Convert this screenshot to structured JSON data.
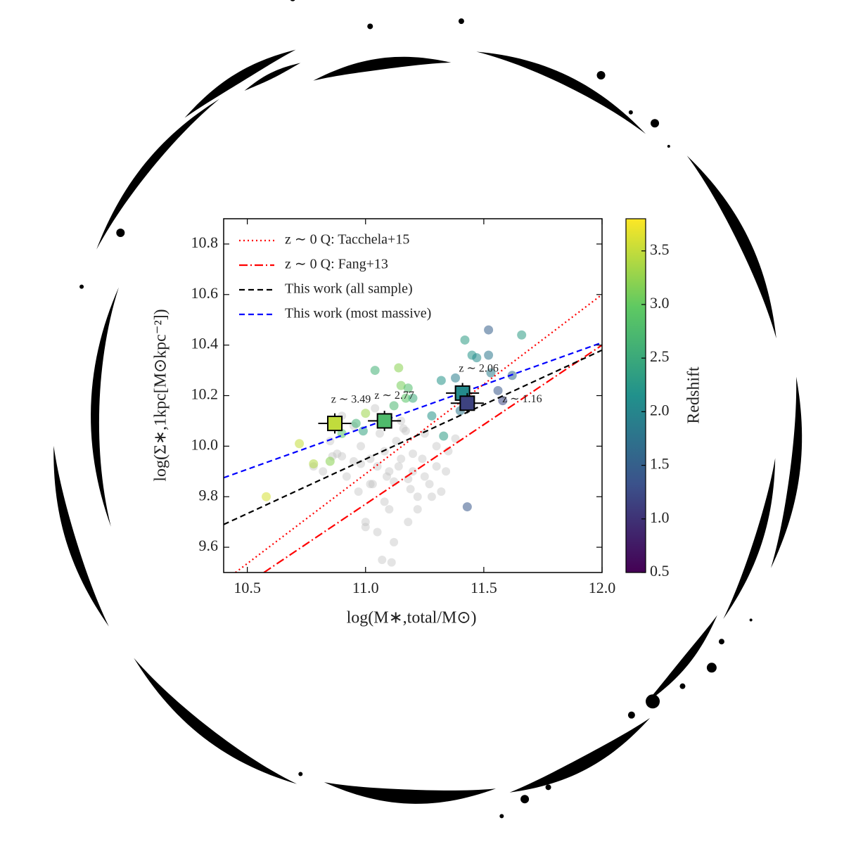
{
  "chart_data": {
    "type": "scatter",
    "xlabel": "log(M∗,total/M⊙)",
    "ylabel": "log(Σ∗,1kpc[M⊙kpc⁻²])",
    "xlim": [
      10.4,
      12.0
    ],
    "ylim": [
      9.5,
      10.9
    ],
    "xticks": [
      10.5,
      {
        "value": 11,
        "label": "11.0"
      },
      11.5,
      {
        "value": 12,
        "label": "12.0"
      }
    ],
    "yticks": [
      9.6,
      9.8,
      {
        "value": 10,
        "label": "10.0"
      },
      10.2,
      10.4,
      10.6,
      10.8
    ],
    "legend": "upper left",
    "series": [
      {
        "name": "z ∼ 0 Q: Tacchela+15",
        "color": "#ff0000",
        "dash": "dotted",
        "x": [
          10.45,
          12.0
        ],
        "values": [
          9.5,
          10.6
        ]
      },
      {
        "name": "z ∼ 0 Q: Fang+13",
        "color": "#ff0000",
        "dash": "dashdot",
        "x": [
          10.57,
          12.0
        ],
        "values": [
          9.5,
          10.4
        ]
      },
      {
        "name": "This work (all sample)",
        "color": "#000000",
        "dash": "dashed",
        "x": [
          10.4,
          12.0
        ],
        "values": [
          9.69,
          10.38
        ]
      },
      {
        "name": "This work (most massive)",
        "color": "#0000ff",
        "dash": "dashed",
        "x": [
          10.4,
          12.0
        ],
        "values": [
          9.875,
          10.41
        ]
      }
    ],
    "gray_points": {
      "color": "#bbbbbb",
      "x": [
        10.78,
        10.82,
        10.85,
        10.88,
        10.9,
        10.92,
        10.95,
        10.97,
        10.98,
        11.0,
        11.02,
        11.03,
        11.05,
        11.06,
        11.08,
        11.1,
        11.12,
        11.13,
        11.15,
        11.16,
        11.18,
        11.2,
        11.22,
        11.24,
        11.25,
        11.27,
        11.3,
        11.32,
        11.35,
        11.38,
        11.1,
        11.05,
        11.0,
        11.15,
        11.2,
        11.08,
        10.95,
        11.12,
        11.18,
        11.25,
        11.02,
        11.07,
        10.9,
        11.3,
        11.22,
        11.14,
        11.04,
        10.98,
        11.28,
        11.17,
        11.09,
        11.11,
        10.86,
        11.34,
        11.19
      ],
      "values": [
        9.92,
        9.9,
        10.02,
        9.97,
        9.96,
        9.88,
        9.94,
        9.82,
        10.0,
        9.7,
        9.95,
        9.85,
        9.92,
        10.05,
        9.98,
        9.9,
        9.86,
        10.02,
        9.95,
        10.07,
        9.87,
        9.9,
        9.8,
        9.95,
        10.05,
        9.85,
        9.92,
        9.82,
        9.98,
        10.03,
        9.75,
        9.66,
        9.68,
        10.1,
        9.97,
        9.78,
        10.08,
        9.62,
        9.7,
        9.88,
        9.85,
        9.55,
        10.12,
        10.0,
        9.75,
        9.92,
        10.15,
        9.93,
        9.8,
        10.06,
        9.88,
        9.54,
        9.96,
        9.9,
        9.83
      ]
    },
    "points": {
      "x": [
        11.66,
        11.52,
        11.42,
        11.45,
        11.47,
        11.52,
        11.53,
        11.62,
        11.56,
        11.58,
        11.32,
        11.14,
        11.04,
        11.15,
        11.18,
        11.12,
        11.17,
        11.2,
        11.0,
        10.99,
        10.96,
        10.9,
        10.85,
        10.78,
        10.72,
        10.58,
        11.43,
        11.33,
        11.4,
        11.28,
        11.38
      ],
      "values": [
        10.44,
        10.46,
        10.42,
        10.36,
        10.35,
        10.36,
        10.29,
        10.28,
        10.22,
        10.18,
        10.26,
        10.31,
        10.3,
        10.24,
        10.23,
        10.16,
        10.19,
        10.19,
        10.13,
        10.06,
        10.09,
        10.05,
        9.94,
        9.93,
        10.01,
        9.8,
        9.76,
        10.04,
        10.14,
        10.12,
        10.27
      ],
      "redshift": [
        2.3,
        1.5,
        2.3,
        2.2,
        2.1,
        1.8,
        1.9,
        1.6,
        1.4,
        1.2,
        2.2,
        3.2,
        2.6,
        3.1,
        2.8,
        2.7,
        2.9,
        2.5,
        3.3,
        2.4,
        2.6,
        2.9,
        3.2,
        3.4,
        3.5,
        3.6,
        1.4,
        2.3,
        1.8,
        2.2,
        1.9
      ]
    },
    "stacks": {
      "x": [
        10.87,
        11.08,
        11.41,
        11.43
      ],
      "values": [
        10.09,
        10.1,
        10.21,
        10.17
      ],
      "xerr": [
        0.07,
        0.07,
        0.07,
        0.07
      ],
      "yerr": [
        0.04,
        0.04,
        0.04,
        0.04
      ],
      "redshift": [
        3.49,
        2.77,
        2.06,
        1.16
      ],
      "labels": [
        "z ∼ 3.49",
        "z ∼ 2.77",
        "z ∼ 2.06",
        "z ∼ 1.16"
      ]
    },
    "colorbar": {
      "label": "Redshift",
      "colormap": "viridis",
      "lim": [
        0.5,
        3.8
      ],
      "ticks": [
        0.5,
        {
          "value": 1,
          "label": "1.0"
        },
        1.5,
        {
          "value": 2,
          "label": "2.0"
        },
        2.5,
        {
          "value": 3,
          "label": "3.0"
        },
        3.5
      ]
    }
  }
}
